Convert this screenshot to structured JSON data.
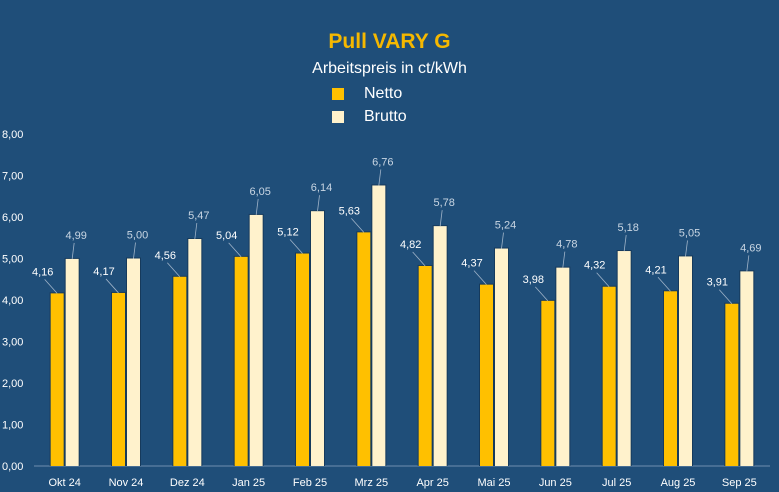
{
  "chart_data": {
    "type": "bar",
    "title": "Pull VARY G",
    "subtitle": "Arbeitspreis in ct/kWh",
    "categories": [
      "Okt 24",
      "Nov 24",
      "Dez 24",
      "Jan 25",
      "Feb 25",
      "Mrz 25",
      "Apr 25",
      "Mai 25",
      "Jun 25",
      "Jul 25",
      "Aug 25",
      "Sep 25"
    ],
    "series": [
      {
        "name": "Netto",
        "color": "#ffc000",
        "values": [
          4.16,
          4.17,
          4.56,
          5.04,
          5.12,
          5.63,
          4.82,
          4.37,
          3.98,
          4.32,
          4.21,
          3.91
        ],
        "labels": [
          "4,16",
          "4,17",
          "4,56",
          "5,04",
          "5,12",
          "5,63",
          "4,82",
          "4,37",
          "3,98",
          "4,32",
          "4,21",
          "3,91"
        ]
      },
      {
        "name": "Brutto",
        "color": "#fff2cc",
        "values": [
          4.99,
          5.0,
          5.47,
          6.05,
          6.14,
          6.76,
          5.78,
          5.24,
          4.78,
          5.18,
          5.05,
          4.69
        ],
        "labels": [
          "4,99",
          "5,00",
          "5,47",
          "6,05",
          "6,14",
          "6,76",
          "5,78",
          "5,24",
          "4,78",
          "5,18",
          "5,05",
          "4,69"
        ]
      }
    ],
    "ylim": [
      0,
      8
    ],
    "yticks": [
      0,
      1,
      2,
      3,
      4,
      5,
      6,
      7,
      8
    ],
    "ytick_labels": [
      "0,00",
      "1,00",
      "2,00",
      "3,00",
      "4,00",
      "5,00",
      "6,00",
      "7,00",
      "8,00"
    ],
    "legend_position": "top-center",
    "grid": false
  }
}
